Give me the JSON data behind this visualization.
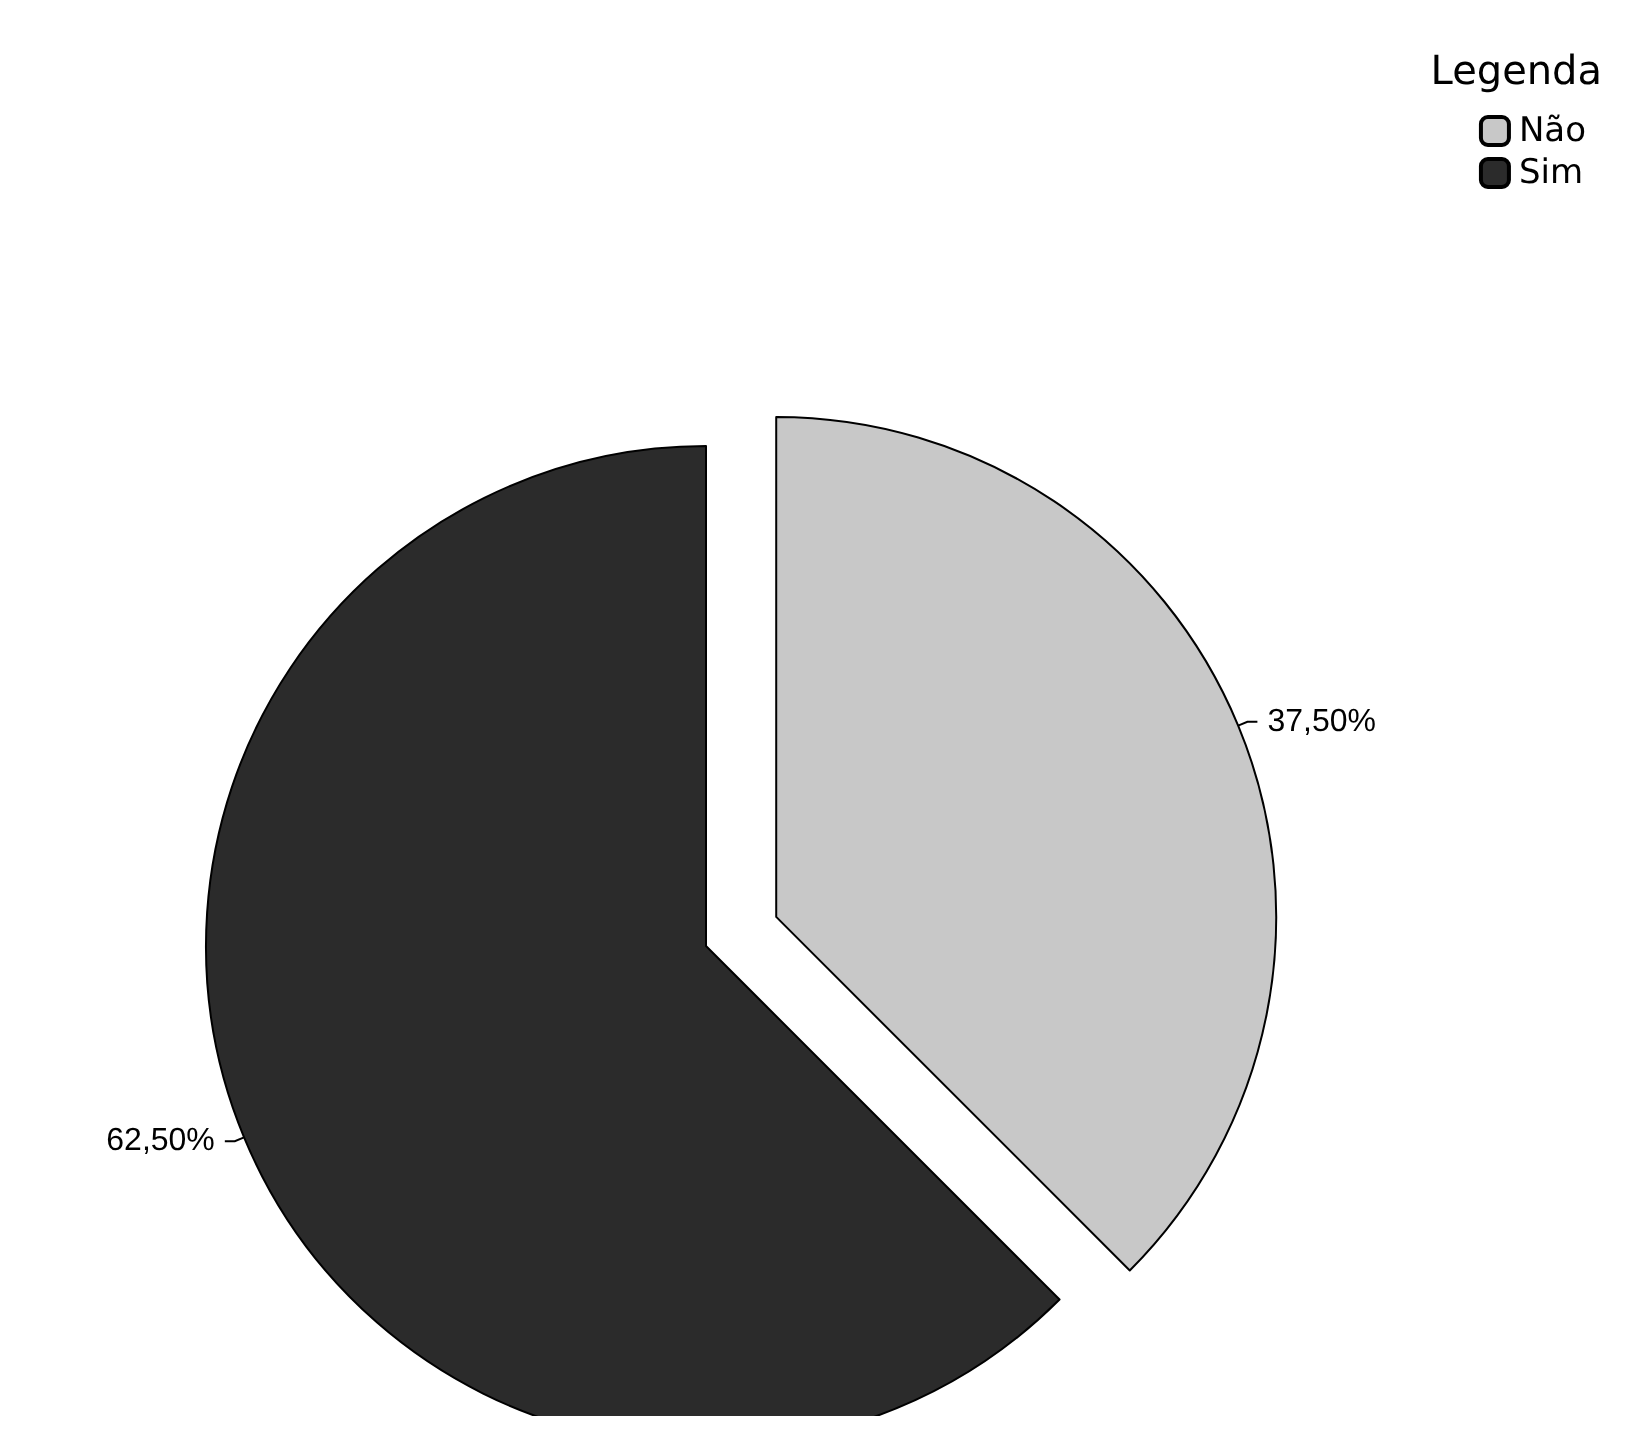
{
  "chart_data": {
    "type": "pie",
    "legend_title": "Legenda",
    "categories": [
      "Não",
      "Sim"
    ],
    "values": [
      37.5,
      62.5
    ],
    "colors": [
      "#c8c8c8",
      "#2b2b2b"
    ],
    "value_labels": [
      "37,50%",
      "62,50%"
    ],
    "legend": "top right"
  }
}
